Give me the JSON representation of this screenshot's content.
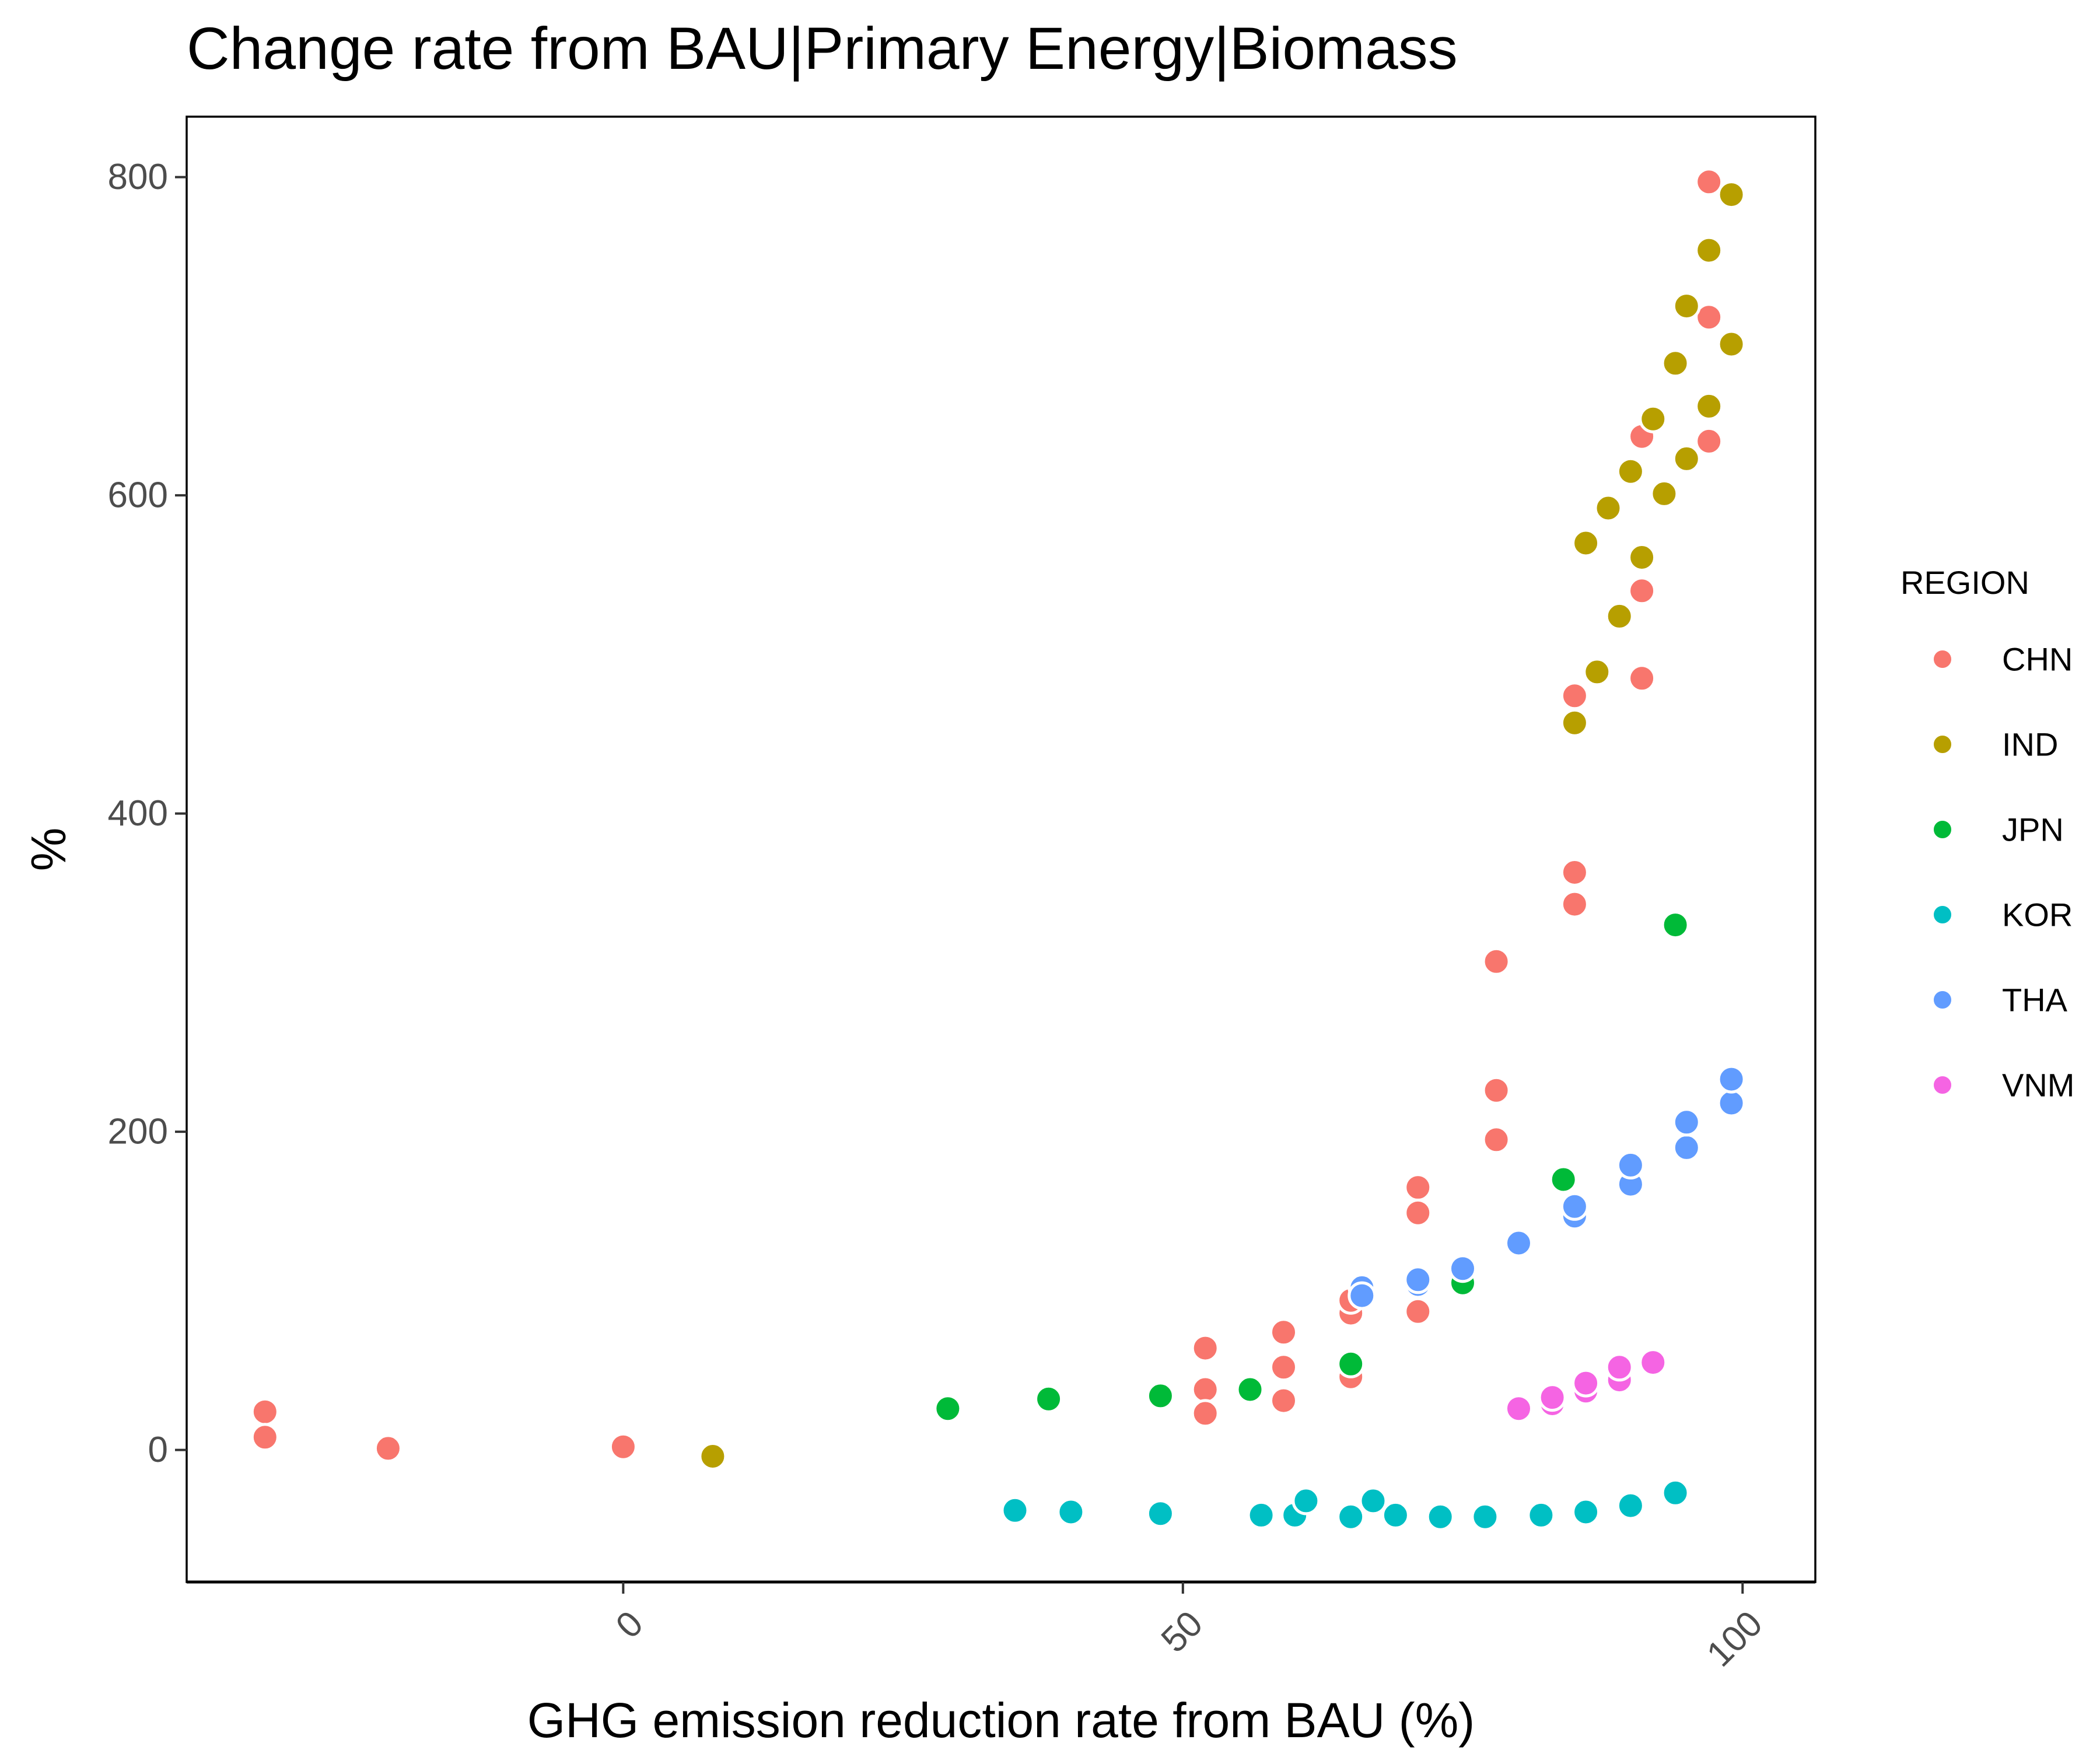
{
  "chart_data": {
    "type": "scatter",
    "title": "Change rate from BAU|Primary Energy|Biomass",
    "xlabel": "GHG emission reduction rate from BAU (%)",
    "ylabel": "%",
    "xlim": [
      -39,
      106.5
    ],
    "ylim": [
      -83,
      838
    ],
    "x_ticks": [
      0,
      50,
      100
    ],
    "x_tick_labels": [
      "0",
      "50",
      "100"
    ],
    "y_ticks": [
      0,
      200,
      400,
      600,
      800
    ],
    "y_tick_labels": [
      "0",
      "200",
      "400",
      "600",
      "800"
    ],
    "grid": false,
    "legend": {
      "title": "REGION",
      "position": "right"
    },
    "series": [
      {
        "name": "CHN",
        "color": "#F8766D",
        "points": [
          [
            -32,
            24
          ],
          [
            -32,
            8
          ],
          [
            -21,
            1
          ],
          [
            0,
            2
          ],
          [
            52,
            64
          ],
          [
            52,
            38
          ],
          [
            52,
            23
          ],
          [
            59,
            74
          ],
          [
            59,
            52
          ],
          [
            59,
            31
          ],
          [
            65,
            46
          ],
          [
            65,
            86
          ],
          [
            65,
            94
          ],
          [
            71,
            165
          ],
          [
            71,
            149
          ],
          [
            71,
            87
          ],
          [
            78,
            307
          ],
          [
            78,
            226
          ],
          [
            78,
            195
          ],
          [
            85,
            474
          ],
          [
            85,
            363
          ],
          [
            85,
            343
          ],
          [
            91,
            637
          ],
          [
            91,
            540
          ],
          [
            91,
            485
          ],
          [
            97,
            797
          ],
          [
            97,
            712
          ],
          [
            97,
            634
          ]
        ]
      },
      {
        "name": "IND",
        "color": "#B79F00",
        "points": [
          [
            8,
            -4
          ],
          [
            85,
            457
          ],
          [
            86,
            570
          ],
          [
            87,
            489
          ],
          [
            88,
            592
          ],
          [
            89,
            524
          ],
          [
            90,
            615
          ],
          [
            91,
            561
          ],
          [
            92,
            648
          ],
          [
            93,
            601
          ],
          [
            94,
            683
          ],
          [
            95,
            623
          ],
          [
            95,
            719
          ],
          [
            97,
            656
          ],
          [
            97,
            754
          ],
          [
            99,
            695
          ],
          [
            99,
            789
          ]
        ]
      },
      {
        "name": "JPN",
        "color": "#00BA38",
        "points": [
          [
            29,
            26
          ],
          [
            38,
            32
          ],
          [
            48,
            34
          ],
          [
            56,
            38
          ],
          [
            65,
            54
          ],
          [
            75,
            105
          ],
          [
            84,
            170
          ],
          [
            94,
            330
          ]
        ]
      },
      {
        "name": "KOR",
        "color": "#00BFC4",
        "points": [
          [
            35,
            -38
          ],
          [
            40,
            -39
          ],
          [
            48,
            -40
          ],
          [
            57,
            -41
          ],
          [
            60,
            -41
          ],
          [
            61,
            -32
          ],
          [
            65,
            -42
          ],
          [
            67,
            -32
          ],
          [
            69,
            -41
          ],
          [
            73,
            -42
          ],
          [
            77,
            -42
          ],
          [
            82,
            -41
          ],
          [
            86,
            -39
          ],
          [
            90,
            -35
          ],
          [
            94,
            -27
          ]
        ]
      },
      {
        "name": "THA",
        "color": "#619CFF",
        "points": [
          [
            66,
            102
          ],
          [
            66,
            97
          ],
          [
            71,
            104
          ],
          [
            71,
            107
          ],
          [
            75,
            114
          ],
          [
            80,
            130
          ],
          [
            85,
            147
          ],
          [
            85,
            153
          ],
          [
            90,
            167
          ],
          [
            90,
            179
          ],
          [
            95,
            190
          ],
          [
            95,
            206
          ],
          [
            99,
            218
          ],
          [
            99,
            233
          ]
        ]
      },
      {
        "name": "VNM",
        "color": "#F564E3",
        "points": [
          [
            80,
            26
          ],
          [
            83,
            29
          ],
          [
            83,
            33
          ],
          [
            86,
            37
          ],
          [
            86,
            42
          ],
          [
            89,
            44
          ],
          [
            89,
            52
          ],
          [
            92,
            55
          ]
        ]
      }
    ]
  }
}
